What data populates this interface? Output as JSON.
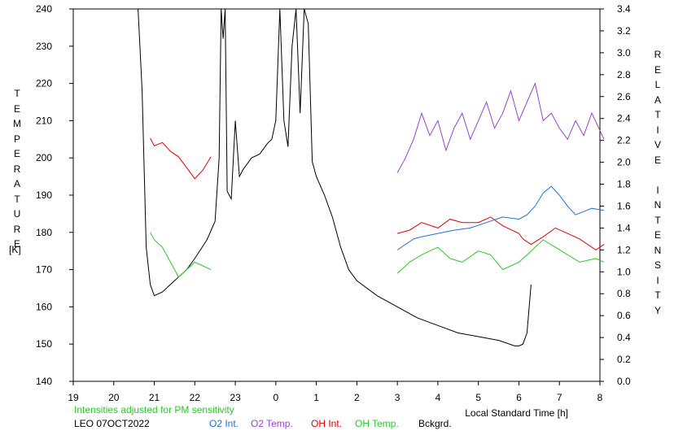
{
  "chart_data": {
    "type": "line",
    "left_axis_title": "TEMPERATURE",
    "left_axis_unit": "[K]",
    "right_axis_title": "RELATIVE INTENSITY",
    "xlabel": "Local Standard Time [h]",
    "ylim_left": [
      140,
      240
    ],
    "ylim_right": [
      0.0,
      3.4
    ],
    "yticks_left": [
      "140",
      "150",
      "160",
      "170",
      "180",
      "190",
      "200",
      "210",
      "220",
      "230",
      "240"
    ],
    "yticks_right": [
      "0.0",
      "0.2",
      "0.4",
      "0.6",
      "0.8",
      "1.0",
      "1.2",
      "1.4",
      "1.6",
      "1.8",
      "2.0",
      "2.2",
      "2.4",
      "2.6",
      "2.8",
      "3.0",
      "3.2",
      "3.4"
    ],
    "xticks": [
      "19",
      "20",
      "21",
      "22",
      "23",
      "0",
      "1",
      "2",
      "3",
      "4",
      "5",
      "6",
      "7",
      "8"
    ],
    "xlim": [
      19,
      32
    ],
    "note": "Intensities adjusted for PM sensitivity",
    "station": "LEO 07OCT2022",
    "legend": [
      "O2 Int.",
      "O2 Temp.",
      "OH Int.",
      "OH Temp.",
      "Bckgrd."
    ],
    "colors": {
      "o2_int": "#1f6fd6",
      "o2_temp": "#9b3fd0",
      "oh_int": "#e00000",
      "oh_temp": "#28c828",
      "bckgrd": "#000000",
      "note": "#28c828"
    },
    "series": [
      {
        "name": "Bckgrd.",
        "axis": "temperature",
        "x": [
          20.6,
          20.7,
          20.8,
          20.9,
          21.0,
          21.2,
          21.5,
          21.8,
          22.0,
          22.3,
          22.5,
          22.6,
          22.65,
          22.7,
          22.75,
          22.8,
          22.9,
          23.0,
          23.1,
          23.2,
          23.4,
          23.6,
          23.8,
          23.9,
          24.0,
          24.1,
          24.2,
          24.3,
          24.4,
          24.5,
          24.6,
          24.7,
          24.8,
          24.9,
          25.0,
          25.2,
          25.4,
          25.6,
          25.8,
          26.0,
          26.5,
          27.0,
          27.5,
          28.0,
          28.5,
          29.0,
          29.5,
          29.9,
          30.0,
          30.1,
          30.2,
          30.3
        ],
        "y": [
          240,
          218,
          176,
          166,
          163,
          164,
          167,
          170,
          173,
          178,
          183,
          200,
          240,
          232,
          240,
          191,
          189,
          210,
          195,
          197,
          200,
          201,
          204,
          205,
          210,
          240,
          210,
          203,
          230,
          240,
          212,
          240,
          236,
          199,
          195,
          190,
          184,
          176,
          170,
          167,
          163,
          160,
          157,
          155,
          153,
          152,
          151,
          149.5,
          149.5,
          150,
          153,
          166
        ]
      },
      {
        "name": "OH Int.",
        "axis": "intensity",
        "x": [
          20.9,
          21.0,
          21.2,
          21.4,
          21.6,
          21.8,
          22.0,
          22.2,
          22.4,
          27.0,
          27.3,
          27.6,
          28.0,
          28.3,
          28.6,
          29.0,
          29.3,
          29.6,
          30.0,
          30.1,
          30.3,
          30.6,
          30.9,
          31.2,
          31.5,
          31.9,
          32.1
        ],
        "y": [
          2.22,
          2.15,
          2.18,
          2.1,
          2.05,
          1.95,
          1.85,
          1.93,
          2.05,
          1.35,
          1.38,
          1.45,
          1.4,
          1.48,
          1.45,
          1.45,
          1.5,
          1.42,
          1.35,
          1.3,
          1.25,
          1.32,
          1.4,
          1.35,
          1.3,
          1.2,
          1.25
        ]
      },
      {
        "name": "OH Temp.",
        "axis": "temperature",
        "x": [
          20.9,
          21.0,
          21.2,
          21.4,
          21.6,
          21.8,
          22.0,
          22.2,
          22.4,
          27.0,
          27.3,
          27.6,
          28.0,
          28.3,
          28.6,
          29.0,
          29.3,
          29.6,
          30.0,
          30.3,
          30.6,
          30.9,
          31.2,
          31.5,
          31.9,
          32.1
        ],
        "y": [
          180,
          178,
          176,
          172,
          168,
          170,
          172,
          171,
          170,
          169,
          172,
          174,
          176,
          173,
          172,
          175,
          174,
          170,
          172,
          175,
          178,
          176,
          174,
          172,
          173,
          172
        ]
      },
      {
        "name": "O2 Int.",
        "axis": "intensity",
        "x": [
          27.0,
          27.2,
          27.4,
          27.6,
          28.0,
          28.4,
          28.8,
          29.2,
          29.6,
          30.0,
          30.2,
          30.4,
          30.6,
          30.8,
          31.0,
          31.2,
          31.4,
          31.6,
          31.8,
          32.1
        ],
        "y": [
          1.2,
          1.25,
          1.3,
          1.32,
          1.35,
          1.38,
          1.4,
          1.45,
          1.5,
          1.48,
          1.52,
          1.6,
          1.72,
          1.78,
          1.7,
          1.6,
          1.52,
          1.55,
          1.58,
          1.56
        ]
      },
      {
        "name": "O2 Temp.",
        "axis": "temperature",
        "x": [
          27.0,
          27.2,
          27.4,
          27.6,
          27.8,
          28.0,
          28.2,
          28.4,
          28.6,
          28.8,
          29.0,
          29.2,
          29.4,
          29.6,
          29.8,
          30.0,
          30.2,
          30.4,
          30.6,
          30.8,
          31.0,
          31.2,
          31.4,
          31.6,
          31.8,
          32.1
        ],
        "y": [
          196,
          200,
          205,
          212,
          206,
          210,
          202,
          208,
          212,
          205,
          210,
          215,
          208,
          212,
          218,
          210,
          215,
          220,
          210,
          212,
          208,
          205,
          210,
          206,
          212,
          205
        ]
      }
    ]
  }
}
